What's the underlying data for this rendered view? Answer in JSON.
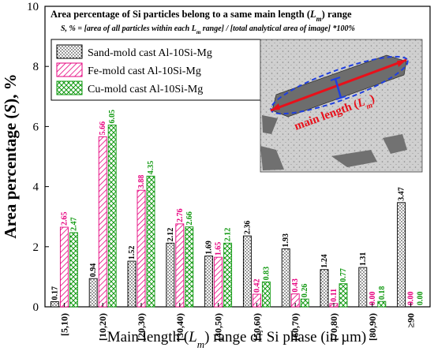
{
  "chart_data": {
    "type": "bar",
    "title": "Area percentage of Si particles belong to a same main length (Lm) range",
    "title_parts": {
      "pre": "Area percentage of Si particles belong to a same main length (",
      "L": "L",
      "sub": "m",
      "post": ") range"
    },
    "subtitle": "S, % = [area of all particles within each Lm range] / [total analytical area of image] *100%",
    "subtitle_parts": {
      "pre": "S, % = [area of all particles within each ",
      "L": "L",
      "sub": "m",
      "post": " range] / [total analytical area of image] *100%"
    },
    "xlabel": "Main length (Lm) range of Si phase (in µm)",
    "xlabel_parts": {
      "pre": "Main length (",
      "L": "L",
      "sub": "m",
      "post": ") range of Si phase (in µm)"
    },
    "ylabel": "Area percentage (S), %",
    "ylabel_parts": {
      "pre": "Area percentage (",
      "S": "S",
      "post": "), %"
    },
    "ylim": [
      0,
      10
    ],
    "yticks": [
      0,
      2,
      4,
      6,
      8,
      10
    ],
    "categories": [
      "[5,10)",
      "[10,20)",
      "[20,30)",
      "[30,40)",
      "[40,50)",
      "[50,60)",
      "[60,70)",
      "[70,80)",
      "[80,90)",
      "≥90"
    ],
    "series": [
      {
        "name": "Sand-mold cast Al-10Si-Mg",
        "color": "#000000",
        "pattern": "dots",
        "values": [
          0.17,
          0.94,
          1.52,
          2.12,
          1.69,
          2.36,
          1.93,
          1.24,
          1.31,
          3.47
        ],
        "labels": [
          "0.17",
          "0.94",
          "1.52",
          "2.12",
          "1.69",
          "2.36",
          "1.93",
          "1.24",
          "1.31",
          "3.47"
        ]
      },
      {
        "name": "Fe-mold cast Al-10Si-Mg",
        "color": "#e6007e",
        "pattern": "hatch-left",
        "values": [
          2.65,
          5.66,
          3.88,
          2.76,
          1.65,
          0.42,
          0.43,
          0.11,
          0.0,
          0.0
        ],
        "labels": [
          "2.65",
          "5.66",
          "3.88",
          "2.76",
          "1.65",
          "0.42",
          "0.43",
          "0.11",
          "0.00",
          "0.00"
        ]
      },
      {
        "name": "Cu-mold cast Al-10Si-Mg",
        "color": "#119911",
        "pattern": "crosshatch",
        "values": [
          2.47,
          6.05,
          4.35,
          2.66,
          2.12,
          0.83,
          0.26,
          0.77,
          0.18,
          0.0
        ],
        "labels": [
          "2.47",
          "6.05",
          "4.35",
          "2.66",
          "2.12",
          "0.83",
          "0.26",
          "0.77",
          "0.18",
          "0.00"
        ]
      }
    ],
    "legend": "top-left",
    "grid": false,
    "inset": {
      "annotation": "main length (Lm)",
      "annotation_parts": {
        "pre": "main length (",
        "L": "L",
        "sub": "m",
        "post": ")"
      }
    }
  }
}
